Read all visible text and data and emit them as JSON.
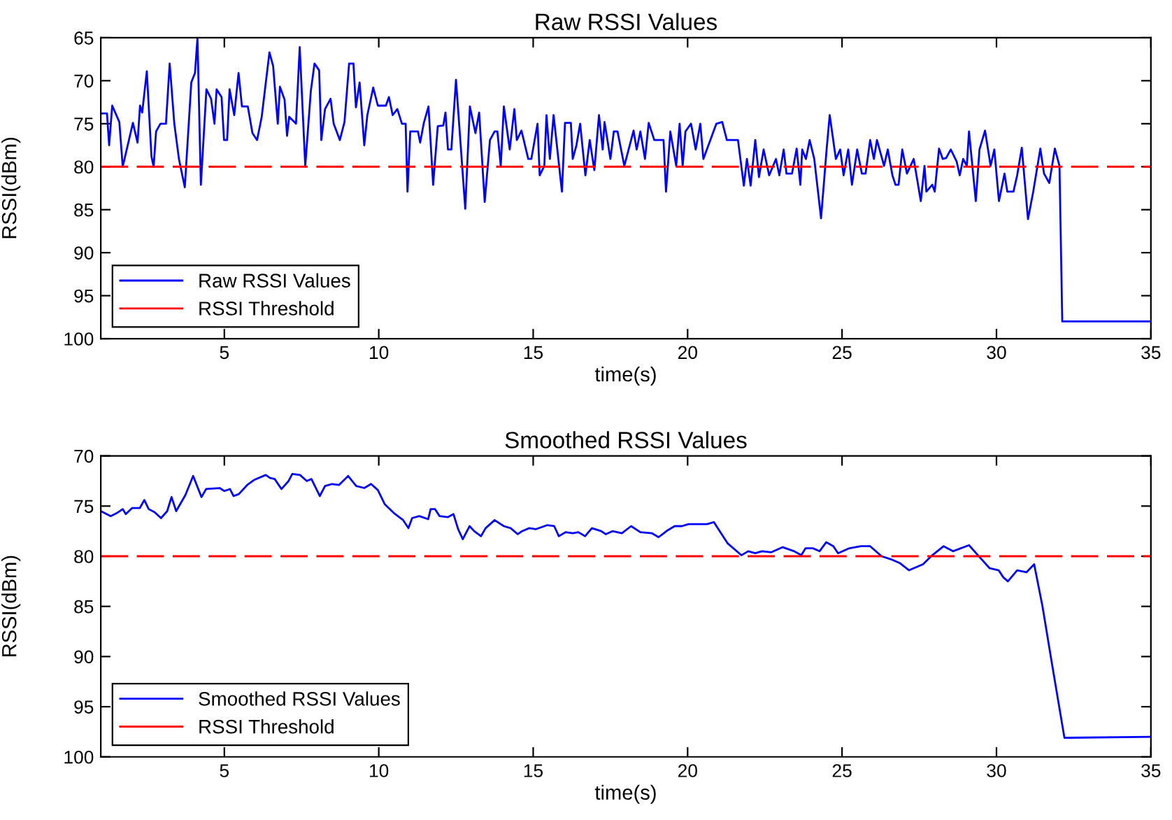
{
  "chart_data": [
    {
      "type": "line",
      "title": "Raw RSSI Values",
      "xlabel": "time(s)",
      "ylabel": "RSSI(dBm)",
      "xlim": [
        1,
        35
      ],
      "xticks": [
        5,
        10,
        15,
        20,
        25,
        30,
        35
      ],
      "ylim": [
        100,
        65
      ],
      "yticks": [
        65,
        70,
        75,
        80,
        85,
        90,
        95,
        100
      ],
      "grid": false,
      "legend": "bottom left",
      "series": [
        {
          "name": "Raw RSSI Values",
          "color": "#0000ff",
          "line_style": "solid",
          "x": [
            1,
            1.2,
            1.27,
            1.37,
            1.6,
            1.71,
            2.04,
            2.19,
            2.27,
            2.34,
            2.49,
            2.64,
            2.71,
            2.79,
            2.93,
            3.11,
            3.23,
            3.38,
            3.53,
            3.72,
            3.93,
            4.05,
            4.13,
            4.24,
            4.42,
            4.57,
            4.68,
            4.75,
            4.91,
            4.99,
            5.09,
            5.17,
            5.32,
            5.46,
            5.57,
            5.76,
            5.91,
            6.06,
            6.21,
            6.46,
            6.58,
            6.73,
            6.8,
            6.95,
            7.03,
            7.1,
            7.32,
            7.44,
            7.62,
            7.8,
            7.92,
            8.07,
            8.14,
            8.26,
            8.44,
            8.54,
            8.74,
            8.89,
            9.04,
            9.18,
            9.26,
            9.38,
            9.53,
            9.63,
            9.82,
            9.97,
            10.23,
            10.33,
            10.45,
            10.6,
            10.75,
            10.87,
            10.93,
            11.02,
            11.27,
            11.34,
            11.46,
            11.61,
            11.76,
            11.91,
            12.09,
            12.16,
            12.24,
            12.35,
            12.5,
            12.8,
            12.95,
            13.13,
            13.25,
            13.43,
            13.6,
            13.75,
            13.84,
            13.95,
            14.05,
            14.24,
            14.39,
            14.47,
            14.62,
            14.84,
            14.94,
            15.14,
            15.21,
            15.36,
            15.43,
            15.54,
            15.66,
            15.93,
            16.03,
            16.22,
            16.28,
            16.4,
            16.52,
            16.69,
            16.83,
            16.98,
            17.13,
            17.25,
            17.31,
            17.5,
            17.61,
            17.73,
            17.95,
            18.25,
            18.35,
            18.47,
            18.62,
            18.74,
            18.92,
            19.22,
            19.3,
            19.44,
            19.63,
            19.74,
            19.84,
            19.93,
            20.11,
            20.26,
            20.41,
            20.51,
            20.93,
            21.12,
            21.27,
            21.63,
            21.82,
            21.92,
            22.04,
            22.19,
            22.31,
            22.46,
            22.64,
            22.86,
            22.97,
            23.11,
            23.2,
            23.38,
            23.53,
            23.65,
            23.71,
            23.83,
            23.95,
            24.1,
            24.32,
            24.5,
            24.6,
            24.8,
            24.94,
            25.05,
            25.2,
            25.32,
            25.49,
            25.64,
            25.76,
            25.91,
            26.03,
            26.13,
            26.36,
            26.48,
            26.63,
            26.73,
            26.83,
            26.95,
            27.1,
            27.32,
            27.55,
            27.67,
            27.73,
            27.92,
            28,
            28.14,
            28.26,
            28.37,
            28.52,
            28.71,
            28.81,
            28.92,
            29.04,
            29.11,
            29.33,
            29.45,
            29.63,
            29.81,
            29.93,
            30.08,
            30.26,
            30.35,
            30.55,
            30.67,
            30.82,
            31.02,
            31.19,
            31.42,
            31.54,
            31.71,
            31.89,
            32.04,
            32.13,
            35
          ],
          "values": [
            73.8,
            73.8,
            77.5,
            72.9,
            74.8,
            80,
            74.9,
            77.2,
            72.9,
            73.7,
            68.9,
            78.8,
            80,
            75.9,
            75,
            75,
            68,
            75,
            79.1,
            82.4,
            70.2,
            69.1,
            65,
            82.1,
            71,
            72.1,
            75,
            71,
            71.9,
            76.9,
            76.9,
            71,
            74,
            69.1,
            73,
            73,
            76.1,
            76.9,
            74.2,
            66.7,
            68.3,
            75,
            70.7,
            72.2,
            76.4,
            74.2,
            75,
            66.1,
            79.9,
            71.2,
            68,
            68.8,
            76.9,
            73.3,
            72.1,
            75,
            76.9,
            74.8,
            68,
            68,
            73.1,
            70.2,
            77.5,
            74,
            70.8,
            72.9,
            72.9,
            71.9,
            74,
            73.3,
            75,
            75,
            82.9,
            75.9,
            75.9,
            77.2,
            74.9,
            73,
            82.1,
            75.3,
            75.2,
            73.7,
            78,
            78,
            69.9,
            84.9,
            73,
            76.1,
            73.7,
            84.1,
            76.9,
            75.9,
            75.9,
            79.9,
            73,
            78,
            73.3,
            76.9,
            75.8,
            79.1,
            79.1,
            75,
            81,
            79.9,
            74,
            79.1,
            74,
            82.9,
            74.9,
            74.9,
            79.1,
            77.5,
            75,
            81,
            76.9,
            80.4,
            74,
            78,
            74.8,
            79.1,
            75.9,
            75.9,
            79.9,
            75.8,
            78,
            75.9,
            79.1,
            74.9,
            76.9,
            76.9,
            82.9,
            75.9,
            79.9,
            75,
            79.9,
            75.9,
            75,
            78,
            75,
            79.1,
            75,
            74.8,
            76.9,
            76.9,
            82.2,
            79.1,
            82.2,
            76.9,
            81.2,
            78,
            81,
            79.1,
            81,
            78,
            80.8,
            80.8,
            77.9,
            82.1,
            78,
            79.1,
            76.9,
            79.1,
            86,
            78,
            74,
            79.1,
            78,
            81,
            78,
            82.1,
            78,
            80.8,
            80.8,
            76.9,
            79.1,
            76.9,
            79.9,
            78,
            81,
            82.1,
            82.1,
            78,
            80.8,
            79.1,
            84,
            79.9,
            82.9,
            82.1,
            82.9,
            77.9,
            79.1,
            79,
            78,
            79.4,
            81,
            79.1,
            79.9,
            75.9,
            84,
            78,
            75.8,
            79.9,
            78,
            84,
            80.8,
            82.9,
            82.9,
            81,
            77.8,
            86.1,
            82.9,
            77.9,
            80.8,
            81.9,
            77.9,
            79.9,
            98,
            98
          ]
        },
        {
          "name": "RSSI Threshold",
          "color": "#ff0000",
          "line_style": "dashed",
          "x": [
            1,
            35
          ],
          "values": [
            80,
            80
          ]
        }
      ]
    },
    {
      "type": "line",
      "title": "Smoothed RSSI Values",
      "xlabel": "time(s)",
      "ylabel": "RSSI(dBm)",
      "xlim": [
        1,
        35
      ],
      "xticks": [
        5,
        10,
        15,
        20,
        25,
        30,
        35
      ],
      "ylim": [
        100,
        70
      ],
      "yticks": [
        70,
        75,
        80,
        85,
        90,
        95,
        100
      ],
      "grid": false,
      "legend": "bottom left",
      "series": [
        {
          "name": "Smoothed RSSI Values",
          "color": "#0000ff",
          "line_style": "solid",
          "x": [
            1,
            1.32,
            1.52,
            1.71,
            1.81,
            2.01,
            2.26,
            2.41,
            2.55,
            2.74,
            2.95,
            3.15,
            3.29,
            3.44,
            3.74,
            3.99,
            4.26,
            4.41,
            4.85,
            5,
            5.18,
            5.3,
            5.47,
            5.74,
            5.96,
            6.34,
            6.48,
            6.63,
            6.85,
            7.08,
            7.2,
            7.45,
            7.67,
            7.82,
            8.09,
            8.26,
            8.49,
            8.71,
            9.01,
            9.27,
            9.53,
            9.75,
            9.97,
            10.19,
            10.49,
            10.79,
            10.96,
            11.08,
            11.31,
            11.6,
            11.68,
            11.82,
            11.97,
            12.24,
            12.42,
            12.57,
            12.72,
            12.94,
            13.09,
            13.31,
            13.46,
            13.75,
            14.05,
            14.27,
            14.5,
            14.64,
            14.87,
            15.09,
            15.46,
            15.68,
            15.83,
            16.05,
            16.28,
            16.46,
            16.68,
            16.9,
            17.2,
            17.35,
            17.57,
            17.87,
            18.17,
            18.47,
            18.84,
            19.06,
            19.36,
            19.58,
            19.81,
            20.03,
            20.63,
            20.85,
            21.29,
            21.74,
            21.96,
            22.19,
            22.41,
            22.71,
            23.08,
            23.45,
            23.68,
            23.82,
            24.05,
            24.27,
            24.49,
            24.72,
            24.87,
            25.24,
            25.61,
            25.91,
            26.28,
            26.58,
            26.88,
            27.17,
            27.62,
            27.92,
            28.29,
            28.59,
            29.11,
            29.4,
            29.78,
            30.07,
            30.22,
            30.37,
            30.67,
            30.97,
            31.22,
            31.49,
            31.79,
            32.2,
            35
          ],
          "values": [
            75.5,
            76,
            75.7,
            75.3,
            75.8,
            75.2,
            75.2,
            74.4,
            75.3,
            75.6,
            76.2,
            75.5,
            74.1,
            75.5,
            73.9,
            72,
            74.1,
            73.3,
            73.2,
            73.5,
            73.3,
            74,
            73.8,
            72.9,
            72.4,
            71.9,
            72.2,
            72.3,
            73.3,
            72.5,
            71.8,
            71.9,
            72.5,
            72.3,
            74,
            73,
            72.8,
            72.9,
            72,
            73,
            73.2,
            72.8,
            73.4,
            74.8,
            75.7,
            76.4,
            77.2,
            76.2,
            76,
            76.3,
            75.3,
            75.3,
            76,
            76.1,
            75.8,
            77.3,
            78.3,
            77,
            77.5,
            78,
            77.2,
            76.4,
            77,
            77.2,
            77.8,
            77.5,
            77.2,
            77.3,
            76.9,
            77,
            78,
            77.6,
            77.7,
            77.6,
            78,
            77.2,
            77.5,
            77.8,
            77.5,
            77.7,
            77,
            77.6,
            77.7,
            78.1,
            77.4,
            77,
            77,
            76.8,
            76.8,
            76.6,
            78.7,
            79.9,
            79.5,
            79.7,
            79.5,
            79.6,
            79.1,
            79.5,
            79.9,
            79.2,
            79.2,
            79.5,
            78.6,
            79,
            79.7,
            79.2,
            79,
            79,
            80,
            80.3,
            80.7,
            81.4,
            80.8,
            79.9,
            79,
            79.5,
            78.9,
            79.9,
            81.2,
            81.4,
            82.1,
            82.5,
            81.4,
            81.6,
            80.8,
            85,
            90.6,
            98.1,
            98
          ]
        },
        {
          "name": "RSSI Threshold",
          "color": "#ff0000",
          "line_style": "dashed",
          "x": [
            1,
            35
          ],
          "values": [
            80,
            80
          ]
        }
      ]
    }
  ]
}
